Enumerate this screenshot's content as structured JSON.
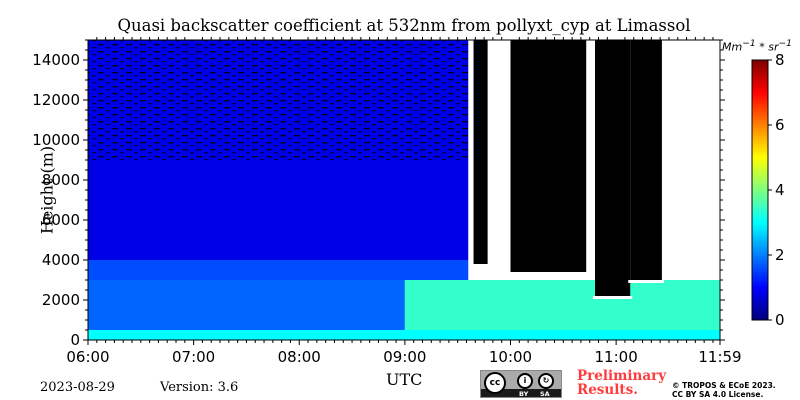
{
  "title": "Quasi backscatter coefficient at 532nm from pollyxt_cyp at Limassol",
  "footer": {
    "date": "2023-08-29",
    "version": "Version: 3.6",
    "preliminary": "Preliminary\nResults.",
    "copyright": "© TROPOS & ECoE 2023.\nCC BY SA 4.0 License.",
    "license_badge": {
      "cc": "cc",
      "by": "BY",
      "sa": "SA"
    }
  },
  "chart_data": {
    "type": "heatmap",
    "title": "Quasi backscatter coefficient at 532nm from pollyxt_cyp at Limassol",
    "xlabel": "UTC",
    "ylabel": "Height (m)",
    "x_ticks": [
      "06:00",
      "07:00",
      "08:00",
      "09:00",
      "10:00",
      "11:00",
      "11:59"
    ],
    "x_range": [
      "06:00",
      "11:59"
    ],
    "y_ticks": [
      0,
      2000,
      4000,
      6000,
      8000,
      10000,
      12000,
      14000
    ],
    "ylim": [
      0,
      15000
    ],
    "colorbar": {
      "label": "Mm^-1 * sr^-1",
      "ticks": [
        0,
        2,
        4,
        6,
        8
      ],
      "range": [
        0,
        8
      ],
      "colormap": "jet"
    },
    "layers": [
      {
        "from_time": "06:00",
        "to_time": "11:59",
        "bottom_m": 0,
        "top_m": 500,
        "value": 3.0
      },
      {
        "from_time": "06:00",
        "to_time": "09:00",
        "bottom_m": 500,
        "top_m": 3000,
        "value": 1.8
      },
      {
        "from_time": "09:00",
        "to_time": "11:59",
        "bottom_m": 500,
        "top_m": 3000,
        "value": 3.4
      },
      {
        "from_time": "06:00",
        "to_time": "09:36",
        "bottom_m": 3000,
        "top_m": 4000,
        "value": 1.6
      },
      {
        "from_time": "06:00",
        "to_time": "09:36",
        "bottom_m": 4000,
        "top_m": 15000,
        "value": 0.8
      }
    ],
    "clouds": [
      {
        "from_time": "09:39",
        "to_time": "09:47",
        "base_m": 3800,
        "top_m": 15000
      },
      {
        "from_time": "10:00",
        "to_time": "10:43",
        "base_m": 3400,
        "top_m": 15000
      },
      {
        "from_time": "10:48",
        "to_time": "11:08",
        "base_m": 2200,
        "top_m": 15000
      },
      {
        "from_time": "11:08",
        "to_time": "11:26",
        "base_m": 3000,
        "top_m": 15000
      }
    ],
    "grid": false
  }
}
